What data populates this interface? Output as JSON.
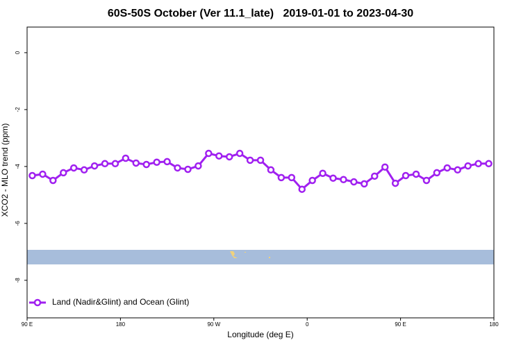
{
  "chart_data": {
    "type": "line",
    "title": "60S-50S October (Ver 11.1_late)   2019-01-01 to 2023-04-30",
    "x_label": "Longitude (deg E)",
    "y_label": "XCO2 - MLO trend (ppm)",
    "x": [
      95,
      105,
      115,
      125,
      135,
      145,
      155,
      165,
      175,
      185,
      195,
      205,
      215,
      225,
      235,
      245,
      255,
      265,
      275,
      285,
      295,
      305,
      315,
      325,
      335,
      345,
      355,
      365,
      375,
      385,
      395,
      405,
      415,
      425,
      435,
      445,
      455,
      465,
      475,
      485,
      495,
      505,
      515,
      525,
      535
    ],
    "series": [
      {
        "name": "Land (Nadir&Glint) and Ocean (Glint)",
        "color": "#a020f0",
        "values": [
          -4.32,
          -4.27,
          -4.49,
          -4.22,
          -4.05,
          -4.12,
          -3.98,
          -3.9,
          -3.9,
          -3.71,
          -3.88,
          -3.93,
          -3.85,
          -3.83,
          -4.05,
          -4.1,
          -3.98,
          -3.54,
          -3.63,
          -3.66,
          -3.54,
          -3.78,
          -3.78,
          -4.12,
          -4.39,
          -4.39,
          -4.8,
          -4.49,
          -4.24,
          -4.41,
          -4.46,
          -4.54,
          -4.61,
          -4.34,
          -4.02,
          -4.59,
          -4.32,
          -4.27,
          -4.49,
          -4.22,
          -4.05,
          -4.12,
          -3.98,
          -3.9,
          -3.9
        ]
      }
    ],
    "xlim": [
      90,
      540
    ],
    "xticks": [
      {
        "value": 90,
        "label": "90 E"
      },
      {
        "value": 180,
        "label": "180"
      },
      {
        "value": 270,
        "label": "90 W"
      },
      {
        "value": 360,
        "label": "0"
      },
      {
        "value": 450,
        "label": "90 E"
      },
      {
        "value": 540,
        "label": "180"
      }
    ],
    "ylim": [
      -9.32,
      0.9
    ],
    "yticks": [
      0,
      -2,
      -4,
      -6,
      -8
    ],
    "legend": "bottom-left"
  }
}
